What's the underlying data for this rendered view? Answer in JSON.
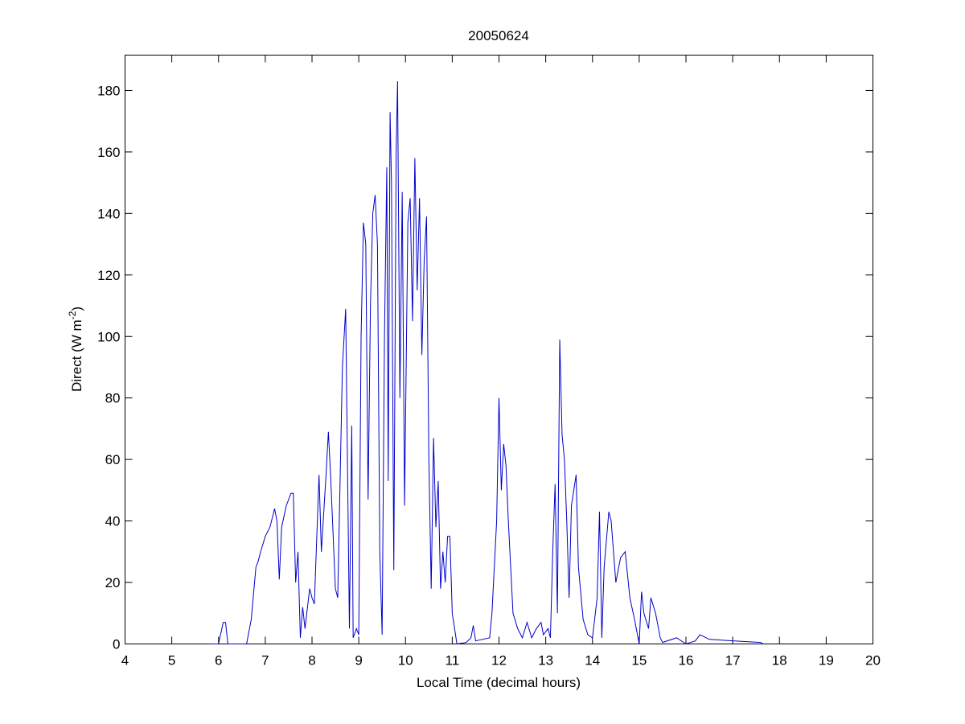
{
  "chart_data": {
    "type": "line",
    "title": "20050624",
    "x_label": "Local Time (decimal hours)",
    "y_label": {
      "text": "Direct (W m",
      "superscript": "-2",
      "suffix": ")"
    },
    "xlim": [
      4,
      20
    ],
    "xticks": [
      4,
      5,
      6,
      7,
      8,
      9,
      10,
      11,
      12,
      13,
      14,
      15,
      16,
      17,
      18,
      19,
      20
    ],
    "ylim": [
      0,
      191.5
    ],
    "yticks": [
      0,
      20,
      40,
      60,
      80,
      100,
      120,
      140,
      160,
      180
    ],
    "grid": false,
    "series": [
      {
        "color": "#0000cc",
        "x": [
          5.8,
          6.0,
          6.1,
          6.15,
          6.2,
          6.6,
          6.7,
          6.8,
          6.85,
          6.9,
          7.0,
          7.1,
          7.2,
          7.25,
          7.3,
          7.35,
          7.45,
          7.55,
          7.6,
          7.65,
          7.7,
          7.75,
          7.8,
          7.85,
          7.95,
          8.0,
          8.05,
          8.15,
          8.2,
          8.3,
          8.35,
          8.4,
          8.5,
          8.55,
          8.65,
          8.72,
          8.8,
          8.85,
          8.88,
          8.95,
          9.0,
          9.05,
          9.1,
          9.15,
          9.2,
          9.25,
          9.3,
          9.35,
          9.4,
          9.45,
          9.5,
          9.55,
          9.6,
          9.63,
          9.67,
          9.7,
          9.75,
          9.8,
          9.83,
          9.88,
          9.93,
          9.98,
          10.05,
          10.1,
          10.15,
          10.2,
          10.25,
          10.3,
          10.35,
          10.4,
          10.45,
          10.5,
          10.55,
          10.6,
          10.65,
          10.7,
          10.75,
          10.8,
          10.85,
          10.9,
          10.95,
          11.0,
          11.1,
          11.3,
          11.4,
          11.45,
          11.5,
          11.8,
          11.85,
          11.95,
          12.0,
          12.05,
          12.1,
          12.15,
          12.2,
          12.3,
          12.4,
          12.5,
          12.6,
          12.7,
          12.8,
          12.9,
          12.95,
          13.05,
          13.1,
          13.15,
          13.2,
          13.25,
          13.3,
          13.35,
          13.4,
          13.45,
          13.5,
          13.55,
          13.6,
          13.65,
          13.7,
          13.8,
          13.9,
          14.0,
          14.1,
          14.15,
          14.2,
          14.25,
          14.35,
          14.4,
          14.5,
          14.6,
          14.7,
          14.8,
          14.9,
          15.0,
          15.05,
          15.1,
          15.2,
          15.25,
          15.35,
          15.45,
          15.5,
          15.8,
          16.0,
          16.2,
          16.3,
          16.5,
          17.0,
          17.6,
          17.65
        ],
        "values": [
          0,
          0,
          7,
          7,
          0,
          0,
          8,
          25,
          27,
          30,
          35,
          38,
          44,
          40,
          21,
          38,
          45,
          49,
          49,
          20,
          30,
          2,
          12,
          5,
          18,
          15,
          13,
          55,
          30,
          55,
          69,
          54,
          18,
          15,
          90,
          109,
          5,
          71,
          2,
          5,
          3,
          100,
          137,
          130,
          47,
          110,
          140,
          146,
          130,
          30,
          3,
          100,
          155,
          53,
          173,
          150,
          24,
          160,
          183,
          80,
          147,
          45,
          137,
          145,
          105,
          158,
          115,
          145,
          94,
          125,
          139,
          60,
          18,
          67,
          38,
          53,
          18,
          30,
          20,
          35,
          35,
          10,
          0,
          0.5,
          2,
          6,
          1,
          2,
          10,
          40,
          80,
          50,
          65,
          58,
          40,
          10,
          5,
          2,
          7,
          2,
          5,
          7,
          3,
          5,
          2,
          30,
          52,
          10,
          99,
          68,
          60,
          40,
          15,
          45,
          50,
          55,
          25,
          8,
          3,
          2,
          15,
          43,
          2,
          25,
          43,
          40,
          20,
          28,
          30,
          15,
          8,
          0,
          17,
          10,
          5,
          15,
          10,
          2,
          0.5,
          2,
          0,
          1,
          3,
          1.5,
          1,
          0.5,
          0
        ]
      }
    ]
  }
}
